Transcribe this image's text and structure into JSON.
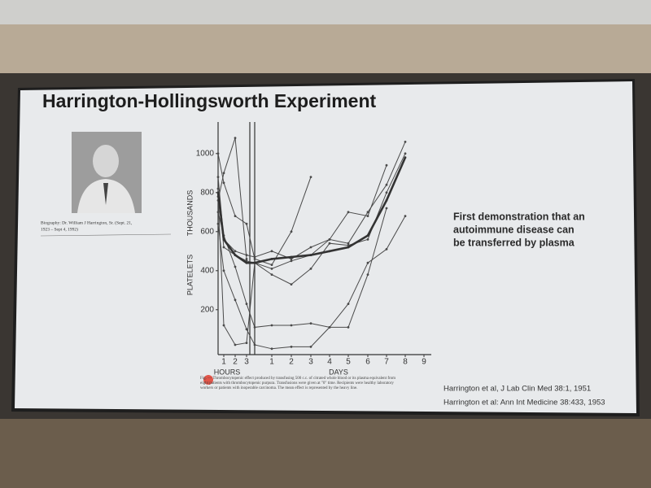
{
  "slide": {
    "title": "Harrington-Hollingsworth Experiment",
    "photo_caption": [
      "Biography: Dr. William J Harrington, Sr. (Sept. 21,",
      "1923 – Sept 4, 1992)"
    ],
    "statement": [
      "First demonstration that an",
      "autoimmune disease can",
      "be transferred by plasma"
    ],
    "figure_caption": "Fig. — Thrombocytopenic effect produced by transfusing 500 c.c. of citrated whole blood or its plasma equivalent from eight patients with thrombocytopenic purpura. Transfusions were given at \"0\" time. Recipients were healthy laboratory workers or patients with inoperable carcinoma. The mean effect is represented by the heavy line.",
    "references": [
      "Harrington et al, J Lab Clin Med 38:1, 1951",
      "Harrington et al: Ann Int Medicine 38:433, 1953"
    ]
  },
  "chart_data": {
    "type": "line",
    "y_label": [
      "PLATELETS",
      "THOUSANDS"
    ],
    "x_labels": [
      "HOURS",
      "DAYS"
    ],
    "categories": [
      null,
      "1",
      "2",
      "3",
      null,
      "1",
      "2",
      "3",
      "4",
      "5",
      "6",
      "7",
      "8",
      "9"
    ],
    "ylim": [
      -30,
      1120
    ],
    "yticks": [
      200,
      400,
      600,
      800,
      1000
    ],
    "series": [
      {
        "color": "#4a4a4a",
        "width": 1,
        "values": [
          1000,
          850,
          680,
          640,
          460,
          430,
          600,
          880,
          null,
          null,
          null,
          null,
          null,
          null
        ]
      },
      {
        "color": "#4a4a4a",
        "width": 1,
        "values": [
          880,
          560,
          500,
          480,
          470,
          500,
          460,
          520,
          560,
          700,
          680,
          940,
          null,
          null
        ]
      },
      {
        "color": "#4a4a4a",
        "width": 1,
        "values": [
          820,
          520,
          480,
          450,
          440,
          410,
          450,
          480,
          560,
          540,
          700,
          840,
          1060,
          null
        ]
      },
      {
        "color": "#4a4a4a",
        "width": 1,
        "values": [
          780,
          120,
          20,
          30,
          440,
          380,
          330,
          410,
          540,
          530,
          560,
          800,
          1000,
          null
        ]
      },
      {
        "color": "#4a4a4a",
        "width": 1,
        "values": [
          700,
          580,
          420,
          230,
          110,
          120,
          120,
          130,
          110,
          110,
          380,
          720,
          null,
          null
        ]
      },
      {
        "color": "#4a4a4a",
        "width": 1,
        "values": [
          640,
          400,
          250,
          100,
          20,
          0,
          10,
          10,
          110,
          230,
          440,
          510,
          680,
          null
        ]
      },
      {
        "color": "#4a4a4a",
        "width": 1,
        "values": [
          760,
          900,
          1080,
          460,
          null,
          null,
          null,
          null,
          null,
          null,
          null,
          null,
          null,
          null
        ]
      },
      {
        "color": "#333333",
        "width": 2.6,
        "values": [
          800,
          560,
          480,
          440,
          440,
          460,
          470,
          480,
          500,
          520,
          580,
          760,
          980,
          null
        ]
      }
    ]
  }
}
